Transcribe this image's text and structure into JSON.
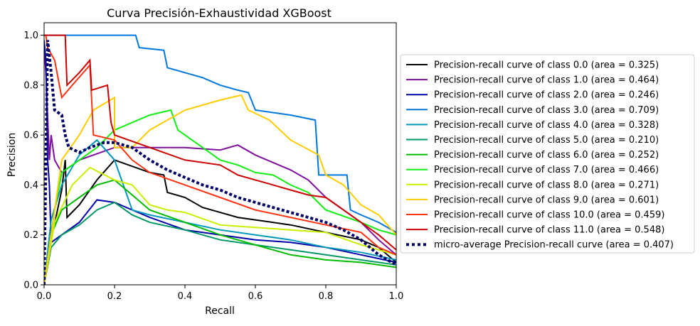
{
  "chart_data": {
    "type": "line",
    "title": "Curva Precisión-Exhaustividad XGBoost",
    "xlabel": "Recall",
    "ylabel": "Precision",
    "xlim": [
      0.0,
      1.0
    ],
    "ylim": [
      0.0,
      1.05
    ],
    "x_ticks": [
      "0.0",
      "0.2",
      "0.4",
      "0.6",
      "0.8",
      "1.0"
    ],
    "y_ticks": [
      "0.0",
      "0.2",
      "0.4",
      "0.6",
      "0.8",
      "1.0"
    ],
    "grid": false,
    "legend_position": "center-right outside",
    "series": [
      {
        "name": "Precision-recall curve of class 0.0 (area = 0.325)",
        "color": "#000000",
        "dash": "solid",
        "points": [
          [
            0,
            0
          ],
          [
            0.02,
            0.18
          ],
          [
            0.05,
            0.38
          ],
          [
            0.06,
            0.5
          ],
          [
            0.065,
            0.27
          ],
          [
            0.1,
            0.32
          ],
          [
            0.15,
            0.42
          ],
          [
            0.2,
            0.5
          ],
          [
            0.3,
            0.45
          ],
          [
            0.34,
            0.44
          ],
          [
            0.35,
            0.37
          ],
          [
            0.4,
            0.35
          ],
          [
            0.45,
            0.31
          ],
          [
            0.5,
            0.29
          ],
          [
            0.55,
            0.27
          ],
          [
            0.6,
            0.26
          ],
          [
            0.7,
            0.24
          ],
          [
            0.8,
            0.21
          ],
          [
            0.9,
            0.18
          ],
          [
            0.95,
            0.15
          ],
          [
            1.0,
            0.09
          ]
        ]
      },
      {
        "name": "Precision-recall curve of class 1.0 (area = 0.464)",
        "color": "#7f0f9f",
        "dash": "solid",
        "points": [
          [
            0,
            0.95
          ],
          [
            0.005,
            0.85
          ],
          [
            0.015,
            0.5
          ],
          [
            0.02,
            0.6
          ],
          [
            0.03,
            0.5
          ],
          [
            0.05,
            0.45
          ],
          [
            0.1,
            0.5
          ],
          [
            0.2,
            0.55
          ],
          [
            0.3,
            0.55
          ],
          [
            0.4,
            0.55
          ],
          [
            0.5,
            0.54
          ],
          [
            0.55,
            0.56
          ],
          [
            0.6,
            0.52
          ],
          [
            0.7,
            0.46
          ],
          [
            0.75,
            0.42
          ],
          [
            0.8,
            0.35
          ],
          [
            0.85,
            0.3
          ],
          [
            0.9,
            0.25
          ],
          [
            0.95,
            0.18
          ],
          [
            1.0,
            0.12
          ]
        ]
      },
      {
        "name": "Precision-recall curve of class 2.0 (area = 0.246)",
        "color": "#0000aa",
        "dash": "solid",
        "points": [
          [
            0,
            0.98
          ],
          [
            0.005,
            0.9
          ],
          [
            0.01,
            0.5
          ],
          [
            0.015,
            0.4
          ],
          [
            0.02,
            0.17
          ],
          [
            0.05,
            0.2
          ],
          [
            0.1,
            0.25
          ],
          [
            0.15,
            0.34
          ],
          [
            0.2,
            0.33
          ],
          [
            0.25,
            0.3
          ],
          [
            0.3,
            0.27
          ],
          [
            0.4,
            0.22
          ],
          [
            0.5,
            0.2
          ],
          [
            0.6,
            0.18
          ],
          [
            0.7,
            0.17
          ],
          [
            0.8,
            0.15
          ],
          [
            0.9,
            0.12
          ],
          [
            1.0,
            0.09
          ]
        ]
      },
      {
        "name": "Precision-recall curve of class 3.0 (area = 0.709)",
        "color": "#0077dd",
        "dash": "solid",
        "points": [
          [
            0,
            1.0
          ],
          [
            0.26,
            1.0
          ],
          [
            0.27,
            0.95
          ],
          [
            0.34,
            0.94
          ],
          [
            0.35,
            0.87
          ],
          [
            0.4,
            0.85
          ],
          [
            0.45,
            0.83
          ],
          [
            0.5,
            0.8
          ],
          [
            0.55,
            0.78
          ],
          [
            0.58,
            0.77
          ],
          [
            0.6,
            0.7
          ],
          [
            0.7,
            0.68
          ],
          [
            0.77,
            0.66
          ],
          [
            0.78,
            0.44
          ],
          [
            0.86,
            0.44
          ],
          [
            0.87,
            0.3
          ],
          [
            0.9,
            0.28
          ],
          [
            0.95,
            0.25
          ],
          [
            1.0,
            0.21
          ]
        ]
      },
      {
        "name": "Precision-recall curve of class 4.0 (area = 0.328)",
        "color": "#0099bb",
        "dash": "solid",
        "points": [
          [
            0,
            0
          ],
          [
            0.02,
            0.26
          ],
          [
            0.05,
            0.4
          ],
          [
            0.1,
            0.52
          ],
          [
            0.15,
            0.58
          ],
          [
            0.2,
            0.5
          ],
          [
            0.25,
            0.3
          ],
          [
            0.3,
            0.28
          ],
          [
            0.4,
            0.25
          ],
          [
            0.5,
            0.22
          ],
          [
            0.6,
            0.2
          ],
          [
            0.7,
            0.18
          ],
          [
            0.8,
            0.15
          ],
          [
            0.9,
            0.13
          ],
          [
            1.0,
            0.1
          ]
        ]
      },
      {
        "name": "Precision-recall curve of class 5.0 (area = 0.210)",
        "color": "#009966",
        "dash": "solid",
        "points": [
          [
            0,
            0
          ],
          [
            0.02,
            0.15
          ],
          [
            0.05,
            0.2
          ],
          [
            0.1,
            0.24
          ],
          [
            0.15,
            0.3
          ],
          [
            0.2,
            0.33
          ],
          [
            0.25,
            0.28
          ],
          [
            0.3,
            0.25
          ],
          [
            0.4,
            0.22
          ],
          [
            0.5,
            0.18
          ],
          [
            0.6,
            0.16
          ],
          [
            0.7,
            0.14
          ],
          [
            0.8,
            0.12
          ],
          [
            0.9,
            0.1
          ],
          [
            1.0,
            0.08
          ]
        ]
      },
      {
        "name": "Precision-recall curve of class 6.0 (area = 0.252)",
        "color": "#00bb00",
        "dash": "solid",
        "points": [
          [
            0,
            0
          ],
          [
            0.02,
            0.2
          ],
          [
            0.05,
            0.3
          ],
          [
            0.1,
            0.35
          ],
          [
            0.15,
            0.4
          ],
          [
            0.2,
            0.42
          ],
          [
            0.25,
            0.36
          ],
          [
            0.3,
            0.3
          ],
          [
            0.4,
            0.25
          ],
          [
            0.5,
            0.2
          ],
          [
            0.6,
            0.16
          ],
          [
            0.7,
            0.12
          ],
          [
            0.8,
            0.1
          ],
          [
            0.9,
            0.09
          ],
          [
            1.0,
            0.07
          ]
        ]
      },
      {
        "name": "Precision-recall curve of class 7.0 (area = 0.466)",
        "color": "#11ee11",
        "dash": "solid",
        "points": [
          [
            0,
            0
          ],
          [
            0.03,
            0.3
          ],
          [
            0.05,
            0.45
          ],
          [
            0.1,
            0.5
          ],
          [
            0.15,
            0.55
          ],
          [
            0.2,
            0.62
          ],
          [
            0.3,
            0.68
          ],
          [
            0.36,
            0.7
          ],
          [
            0.38,
            0.62
          ],
          [
            0.45,
            0.55
          ],
          [
            0.5,
            0.5
          ],
          [
            0.55,
            0.48
          ],
          [
            0.6,
            0.45
          ],
          [
            0.65,
            0.44
          ],
          [
            0.7,
            0.4
          ],
          [
            0.75,
            0.37
          ],
          [
            0.8,
            0.3
          ],
          [
            0.9,
            0.25
          ],
          [
            0.95,
            0.22
          ],
          [
            1.0,
            0.2
          ]
        ]
      },
      {
        "name": "Precision-recall curve of class 8.0 (area = 0.271)",
        "color": "#ccee00",
        "dash": "solid",
        "points": [
          [
            0,
            0
          ],
          [
            0.03,
            0.25
          ],
          [
            0.08,
            0.4
          ],
          [
            0.13,
            0.47
          ],
          [
            0.2,
            0.42
          ],
          [
            0.25,
            0.4
          ],
          [
            0.3,
            0.32
          ],
          [
            0.35,
            0.3
          ],
          [
            0.4,
            0.29
          ],
          [
            0.5,
            0.24
          ],
          [
            0.6,
            0.23
          ],
          [
            0.7,
            0.22
          ],
          [
            0.8,
            0.21
          ],
          [
            0.9,
            0.16
          ],
          [
            1.0,
            0.12
          ]
        ]
      },
      {
        "name": "Precision-recall curve of class 9.0 (area = 0.601)",
        "color": "#ffcc00",
        "dash": "solid",
        "points": [
          [
            0,
            0
          ],
          [
            0.05,
            0.5
          ],
          [
            0.1,
            0.6
          ],
          [
            0.14,
            0.7
          ],
          [
            0.2,
            0.75
          ],
          [
            0.2,
            0.55
          ],
          [
            0.25,
            0.55
          ],
          [
            0.3,
            0.62
          ],
          [
            0.4,
            0.7
          ],
          [
            0.5,
            0.74
          ],
          [
            0.56,
            0.76
          ],
          [
            0.58,
            0.7
          ],
          [
            0.64,
            0.66
          ],
          [
            0.7,
            0.58
          ],
          [
            0.78,
            0.52
          ],
          [
            0.8,
            0.44
          ],
          [
            0.85,
            0.4
          ],
          [
            0.9,
            0.32
          ],
          [
            0.95,
            0.28
          ],
          [
            1.0,
            0.2
          ]
        ]
      },
      {
        "name": "Precision-recall curve of class 10.0 (area = 0.459)",
        "color": "#ff3311",
        "dash": "solid",
        "points": [
          [
            0,
            1.0
          ],
          [
            0.005,
            1.0
          ],
          [
            0.01,
            0.95
          ],
          [
            0.03,
            0.9
          ],
          [
            0.05,
            0.75
          ],
          [
            0.08,
            0.8
          ],
          [
            0.13,
            0.88
          ],
          [
            0.14,
            0.6
          ],
          [
            0.2,
            0.58
          ],
          [
            0.25,
            0.5
          ],
          [
            0.3,
            0.45
          ],
          [
            0.4,
            0.4
          ],
          [
            0.5,
            0.35
          ],
          [
            0.6,
            0.3
          ],
          [
            0.7,
            0.27
          ],
          [
            0.8,
            0.24
          ],
          [
            0.9,
            0.21
          ],
          [
            0.95,
            0.15
          ],
          [
            1.0,
            0.12
          ]
        ]
      },
      {
        "name": "Precision-recall curve of class 11.0 (area = 0.548)",
        "color": "#cc0000",
        "dash": "solid",
        "points": [
          [
            0,
            1.0
          ],
          [
            0.06,
            1.0
          ],
          [
            0.065,
            0.8
          ],
          [
            0.1,
            0.85
          ],
          [
            0.13,
            0.9
          ],
          [
            0.135,
            0.78
          ],
          [
            0.18,
            0.8
          ],
          [
            0.19,
            0.65
          ],
          [
            0.2,
            0.6
          ],
          [
            0.3,
            0.55
          ],
          [
            0.4,
            0.5
          ],
          [
            0.5,
            0.48
          ],
          [
            0.55,
            0.44
          ],
          [
            0.6,
            0.42
          ],
          [
            0.65,
            0.4
          ],
          [
            0.7,
            0.38
          ],
          [
            0.75,
            0.36
          ],
          [
            0.8,
            0.35
          ],
          [
            0.85,
            0.3
          ],
          [
            0.9,
            0.25
          ],
          [
            0.95,
            0.2
          ],
          [
            1.0,
            0.14
          ]
        ]
      },
      {
        "name": "micro-average Precision-recall curve (area = 0.407)",
        "color": "#000066",
        "dash": "dotted",
        "points": [
          [
            0,
            0
          ],
          [
            0.01,
            0.98
          ],
          [
            0.02,
            0.85
          ],
          [
            0.03,
            0.7
          ],
          [
            0.05,
            0.68
          ],
          [
            0.06,
            0.6
          ],
          [
            0.07,
            0.55
          ],
          [
            0.1,
            0.53
          ],
          [
            0.13,
            0.55
          ],
          [
            0.17,
            0.57
          ],
          [
            0.2,
            0.57
          ],
          [
            0.25,
            0.55
          ],
          [
            0.3,
            0.5
          ],
          [
            0.35,
            0.46
          ],
          [
            0.4,
            0.43
          ],
          [
            0.45,
            0.4
          ],
          [
            0.5,
            0.38
          ],
          [
            0.55,
            0.35
          ],
          [
            0.6,
            0.33
          ],
          [
            0.65,
            0.31
          ],
          [
            0.7,
            0.29
          ],
          [
            0.75,
            0.27
          ],
          [
            0.8,
            0.25
          ],
          [
            0.85,
            0.22
          ],
          [
            0.9,
            0.18
          ],
          [
            0.95,
            0.12
          ],
          [
            1.0,
            0.08
          ]
        ]
      }
    ]
  }
}
